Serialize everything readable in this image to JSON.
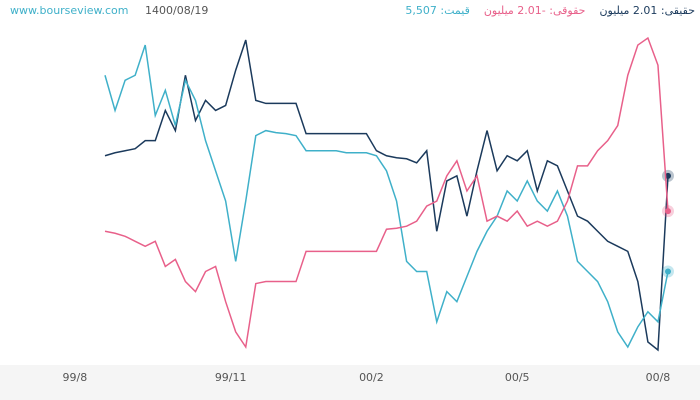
{
  "chart_data": {
    "type": "line",
    "site": "www.bourseview.com",
    "date": "1400/08/19",
    "legend": [
      {
        "text": "قیمت: 5,507",
        "color": "#3fb0c9"
      },
      {
        "text": "حقوقی: -2.01 میلیون",
        "color": "#e8608a"
      },
      {
        "text": "حقیقی: 2.01 میلیون",
        "color": "#1b3a5c"
      }
    ],
    "xlim": [
      -3,
      57
    ],
    "xticks": [
      {
        "value": -3,
        "label": "99/8"
      },
      {
        "value": 12.5,
        "label": "99/11"
      },
      {
        "value": 26.5,
        "label": "00/2"
      },
      {
        "value": 41,
        "label": "00/5"
      },
      {
        "value": 55,
        "label": "00/8"
      }
    ],
    "series": [
      {
        "color": "#1b3a5c",
        "values": [
          245,
          248,
          250,
          252,
          260,
          260,
          290,
          270,
          325,
          280,
          300,
          290,
          295,
          330,
          360,
          300,
          297,
          297,
          297,
          297,
          267,
          267,
          267,
          267,
          267,
          267,
          267,
          250,
          245,
          243,
          242,
          238,
          250,
          170,
          220,
          225,
          185,
          230,
          270,
          230,
          245,
          240,
          250,
          210,
          240,
          235,
          210,
          185,
          180,
          170,
          160,
          155,
          150,
          120,
          60,
          52,
          225
        ]
      },
      {
        "color": "#3fb0c9",
        "values": [
          325,
          290,
          320,
          325,
          355,
          285,
          310,
          275,
          320,
          300,
          260,
          230,
          200,
          140,
          200,
          265,
          270,
          268,
          267,
          265,
          250,
          250,
          250,
          250,
          248,
          248,
          248,
          245,
          230,
          200,
          140,
          130,
          130,
          80,
          110,
          100,
          125,
          150,
          170,
          185,
          210,
          200,
          220,
          200,
          190,
          210,
          185,
          140,
          130,
          120,
          100,
          70,
          55,
          75,
          90,
          80,
          130
        ]
      },
      {
        "color": "#e8608a",
        "values": [
          170,
          168,
          165,
          160,
          155,
          160,
          135,
          142,
          120,
          110,
          130,
          135,
          100,
          70,
          55,
          118,
          120,
          120,
          120,
          120,
          150,
          150,
          150,
          150,
          150,
          150,
          150,
          150,
          172,
          173,
          175,
          180,
          195,
          200,
          225,
          240,
          210,
          225,
          180,
          185,
          180,
          190,
          175,
          180,
          175,
          180,
          200,
          235,
          235,
          250,
          260,
          275,
          325,
          355,
          362,
          335,
          190
        ]
      }
    ]
  }
}
